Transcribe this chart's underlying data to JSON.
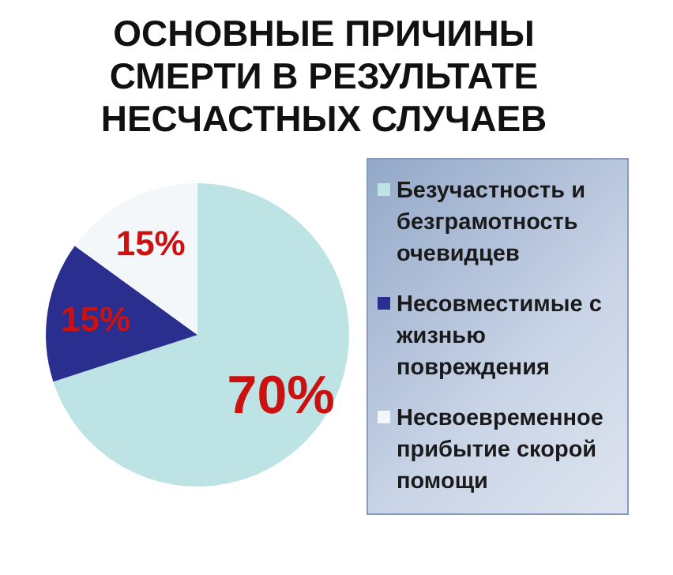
{
  "chart_data": {
    "type": "pie",
    "title": "ОСНОВНЫЕ ПРИЧИНЫ СМЕРТИ В РЕЗУЛЬТАТЕ НЕСЧАСТНЫХ СЛУЧАЕВ",
    "categories": [
      "Безучастность и безграмотность очевидцев",
      "Несовместимые с жизнью повреждения",
      "Несвоевременное прибытие скорой помощи"
    ],
    "values": [
      70,
      15,
      15
    ],
    "colors": [
      "#bde3e5",
      "#2a2f8f",
      "#f4f7f9"
    ],
    "value_labels": [
      "70%",
      "15%",
      "15%"
    ],
    "legend": "right"
  }
}
